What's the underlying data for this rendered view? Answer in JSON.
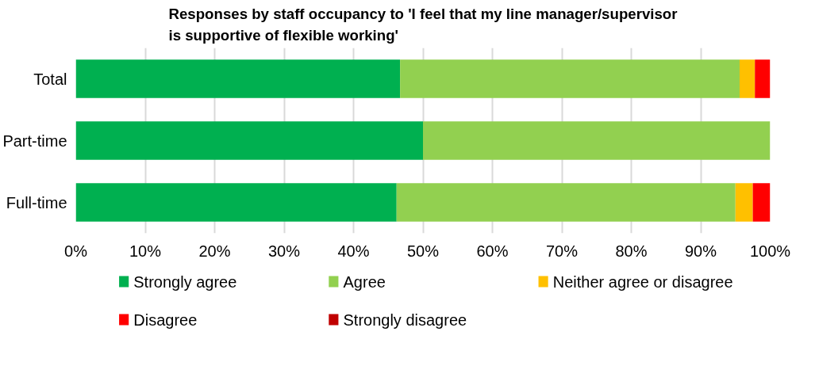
{
  "chart_data": {
    "type": "bar",
    "orientation": "horizontal",
    "stacked": true,
    "title": "Responses by staff occupancy to 'I feel that my line manager/supervisor\nis supportive of flexible working'",
    "categories": [
      "Total",
      "Part-time",
      "Full-time"
    ],
    "series": [
      {
        "name": "Strongly agree",
        "color": "#00b050",
        "values": [
          46.7,
          50,
          46.2
        ]
      },
      {
        "name": "Agree",
        "color": "#92d050",
        "values": [
          48.9,
          50,
          48.8
        ]
      },
      {
        "name": "Neither agree or disagree",
        "color": "#ffc000",
        "values": [
          2.2,
          0,
          2.5
        ]
      },
      {
        "name": "Disagree",
        "color": "#ff0000",
        "values": [
          2.2,
          0,
          2.5
        ]
      },
      {
        "name": "Strongly disagree",
        "color": "#c00000",
        "values": [
          0,
          0,
          0
        ]
      }
    ],
    "xlim": [
      0,
      100
    ],
    "xticks": [
      {
        "value": 0,
        "label": "0%"
      },
      {
        "value": 10,
        "label": "10%"
      },
      {
        "value": 20,
        "label": "20%"
      },
      {
        "value": 30,
        "label": "30%"
      },
      {
        "value": 40,
        "label": "40%"
      },
      {
        "value": 50,
        "label": "50%"
      },
      {
        "value": 60,
        "label": "60%"
      },
      {
        "value": 70,
        "label": "70%"
      },
      {
        "value": 80,
        "label": "80%"
      },
      {
        "value": 90,
        "label": "90%"
      },
      {
        "value": 100,
        "label": "100%"
      }
    ],
    "grid": "x",
    "legend": "bottom"
  }
}
